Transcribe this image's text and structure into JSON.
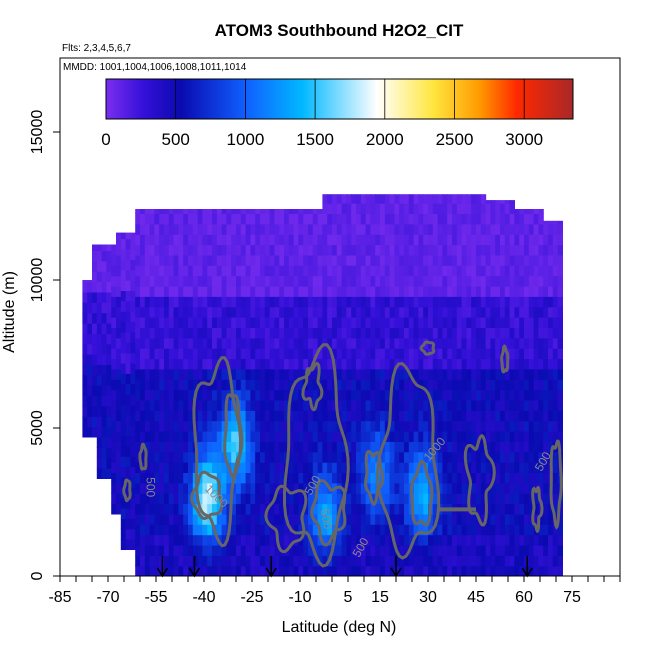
{
  "chart_data": {
    "type": "heatmap",
    "title": "ATOM3 Southbound H2O2_CIT",
    "flights_note": "Flts: 2,3,4,5,6,7",
    "dates_note": "MMDD: 1001,1004,1006,1008,1011,1014",
    "xlabel": "Latitude (deg N)",
    "ylabel": "Altitude (m)",
    "xlim": [
      -85,
      90
    ],
    "ylim": [
      0,
      17500
    ],
    "x_tick_labels": [
      "-85",
      "-70",
      "-55",
      "-40",
      "-25",
      "-10",
      "5",
      "15",
      "30",
      "45",
      "60",
      "75"
    ],
    "y_tick_labels": [
      "0",
      "5000",
      "10000",
      "15000"
    ],
    "colorbar": {
      "range": [
        0,
        3350
      ],
      "tick_labels": [
        "0",
        "500",
        "1000",
        "1500",
        "2000",
        "2500",
        "3000"
      ],
      "colors": [
        "#7a2ef0",
        "#0a0ab0",
        "#1060ff",
        "#00b8ff",
        "#ffffff",
        "#ffe640",
        "#ff5000",
        "#a82828"
      ]
    },
    "contour_labels": [
      "500",
      "1000",
      "500",
      "500",
      "1000",
      "500",
      "500"
    ],
    "arrow_latitudes": [
      -53,
      -43,
      -19,
      20,
      61
    ],
    "coverage": {
      "lat_range": [
        -78,
        72
      ],
      "max_altitude": 12900
    },
    "high_regions": [
      {
        "lat": -39,
        "alt": 2600,
        "value": 1800
      },
      {
        "lat": -30,
        "alt": 4500,
        "value": 1450
      },
      {
        "lat": -2,
        "alt": 2000,
        "value": 1300
      },
      {
        "lat": 28,
        "alt": 2800,
        "value": 1350
      },
      {
        "lat": 14,
        "alt": 3500,
        "value": 1100
      }
    ]
  }
}
